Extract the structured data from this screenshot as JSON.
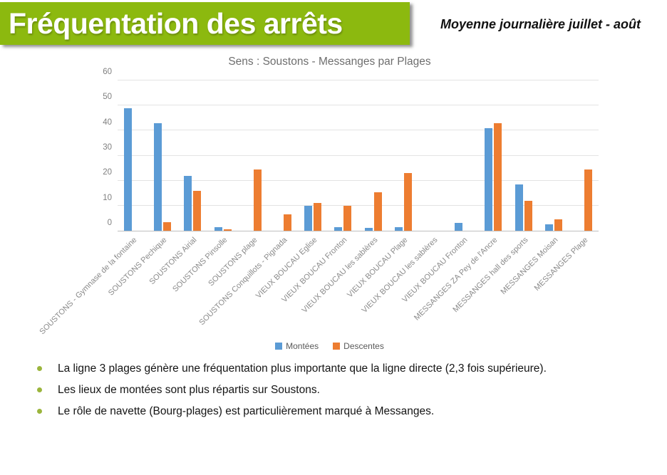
{
  "header": {
    "title": "Fréquentation des arrêts",
    "subtitle": "Moyenne journalière juillet - août"
  },
  "chart_data": {
    "type": "bar",
    "title": "Sens : Soustons - Messanges par Plages",
    "categories": [
      "SOUSTONS - Gymnase de la fontaine",
      "SOUSTONS Pechique",
      "SOUSTONS Airial",
      "SOUSTONS Pinsolle",
      "SOUSTONS plage",
      "SOUSTONS Conquillots - Pignada",
      "VIEUX BOUCAU Eglise",
      "VIEUX BOUCAU Fronton",
      "VIEUX BOUCAU les sablères",
      "VIEUX BOUCAU Plage",
      "VIEUX BOUCAU les sablères",
      "VIEUX BOUCAU Fronton",
      "MESSANGES ZA Pey de l'Ancre",
      "MESSANGES hall des sports",
      "MESSANGES Moisan",
      "MESSANGES Plage"
    ],
    "series": [
      {
        "name": "Montées",
        "color": "#5B9BD5",
        "values": [
          49,
          43,
          22,
          1.5,
          0,
          0,
          10,
          1.5,
          1,
          1.5,
          0,
          3,
          41,
          18.5,
          2.5,
          0
        ]
      },
      {
        "name": "Descentes",
        "color": "#ED7D31",
        "values": [
          0,
          3.5,
          16,
          0.5,
          24.5,
          6.5,
          11,
          10,
          15.5,
          23,
          0,
          0,
          43,
          12,
          4.5,
          24.5
        ]
      }
    ],
    "ylim": [
      0,
      60
    ],
    "yticks": [
      0,
      10,
      20,
      30,
      40,
      50,
      60
    ],
    "grid": true,
    "legend_position": "bottom"
  },
  "bullets": [
    "La ligne 3 plages génère une fréquentation plus importante que la ligne directe (2,3 fois supérieure).",
    "Les lieux de montées sont plus répartis sur Soustons.",
    "Le rôle de navette (Bourg-plages) est particulièrement marqué à Messanges."
  ],
  "colors": {
    "banner_green": "#8CB90F",
    "bullet_green": "#9BB53C",
    "montees_blue": "#5B9BD5",
    "descentes_orange": "#ED7D31"
  }
}
